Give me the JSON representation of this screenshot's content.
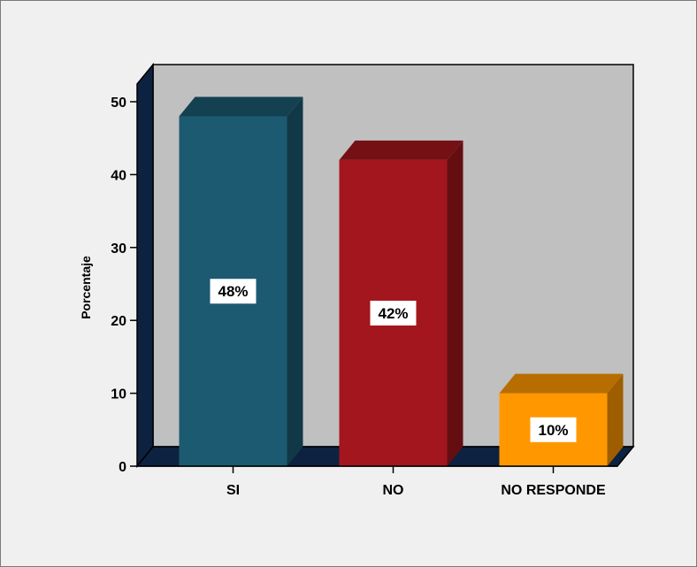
{
  "chart_data": {
    "type": "bar",
    "categories": [
      "SI",
      "NO",
      "NO RESPONDE"
    ],
    "values": [
      48,
      42,
      10
    ],
    "data_labels": [
      "48%",
      "42%",
      "10%"
    ],
    "title": "",
    "xlabel": "",
    "ylabel": "Porcentaje",
    "ylim": [
      0,
      50
    ],
    "yticks": [
      0,
      10,
      20,
      30,
      40,
      50
    ],
    "grid": false,
    "style": "3d",
    "colors": {
      "bars": [
        "#1c5a72",
        "#a3161d",
        "#ff9800"
      ],
      "wall": "#c0c0c0",
      "floor": "#0d2240",
      "frame_bg": "#f0f0f0"
    }
  }
}
